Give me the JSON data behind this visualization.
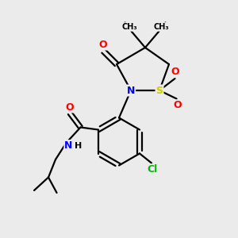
{
  "background_color": "#ebebeb",
  "atom_colors": {
    "O": "#ff0000",
    "N": "#0000ff",
    "S": "#cccc00",
    "Cl": "#00bb00",
    "C": "#000000",
    "H": "#000000"
  },
  "bond_color": "#000000",
  "bond_width": 1.6,
  "fig_width": 3.0,
  "fig_height": 3.0,
  "dpi": 100
}
